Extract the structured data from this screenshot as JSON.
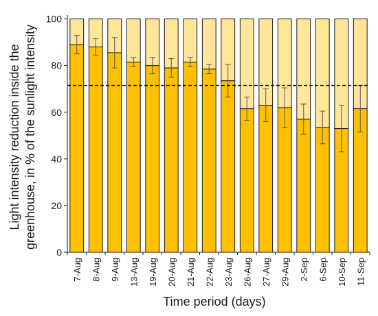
{
  "chart_data": {
    "type": "bar",
    "stacked": true,
    "categories": [
      "7-Aug",
      "8-Aug",
      "9-Aug",
      "13-Aug",
      "19-Aug",
      "20-Aug",
      "21-Aug",
      "22-Aug",
      "23-Aug",
      "26-Aug",
      "27-Aug",
      "29-Aug",
      "2-Sep",
      "6-Sep",
      "10-Sep",
      "11-Sep"
    ],
    "series": [
      {
        "values": [
          89,
          88,
          85.5,
          81.5,
          80,
          79,
          81.5,
          78.5,
          73.5,
          61.5,
          63,
          62,
          57,
          53.5,
          53,
          61.5
        ],
        "error": [
          4,
          3.5,
          6.5,
          2,
          3.5,
          4,
          2,
          2,
          7,
          5,
          7,
          8.5,
          6.5,
          7,
          10,
          10
        ],
        "color": "#FFC000"
      },
      {
        "values": [
          11,
          12,
          14.5,
          18.5,
          20,
          21,
          18.5,
          21.5,
          26.5,
          38.5,
          37,
          38,
          43,
          46.5,
          47,
          38.5
        ],
        "color": "#FFE699"
      }
    ],
    "reference_line": {
      "value": 71.5,
      "style": "dashed",
      "color": "#000000"
    },
    "ylabel_line1": "Light intensity  reduction inside the",
    "ylabel_line2": "greenhouse, in % of the sunlight intensity",
    "xlabel": "Time period (days)",
    "ylim": [
      0,
      100
    ],
    "yticks": [
      0,
      20,
      40,
      60,
      80,
      100
    ],
    "grid": false,
    "legend": "none"
  }
}
